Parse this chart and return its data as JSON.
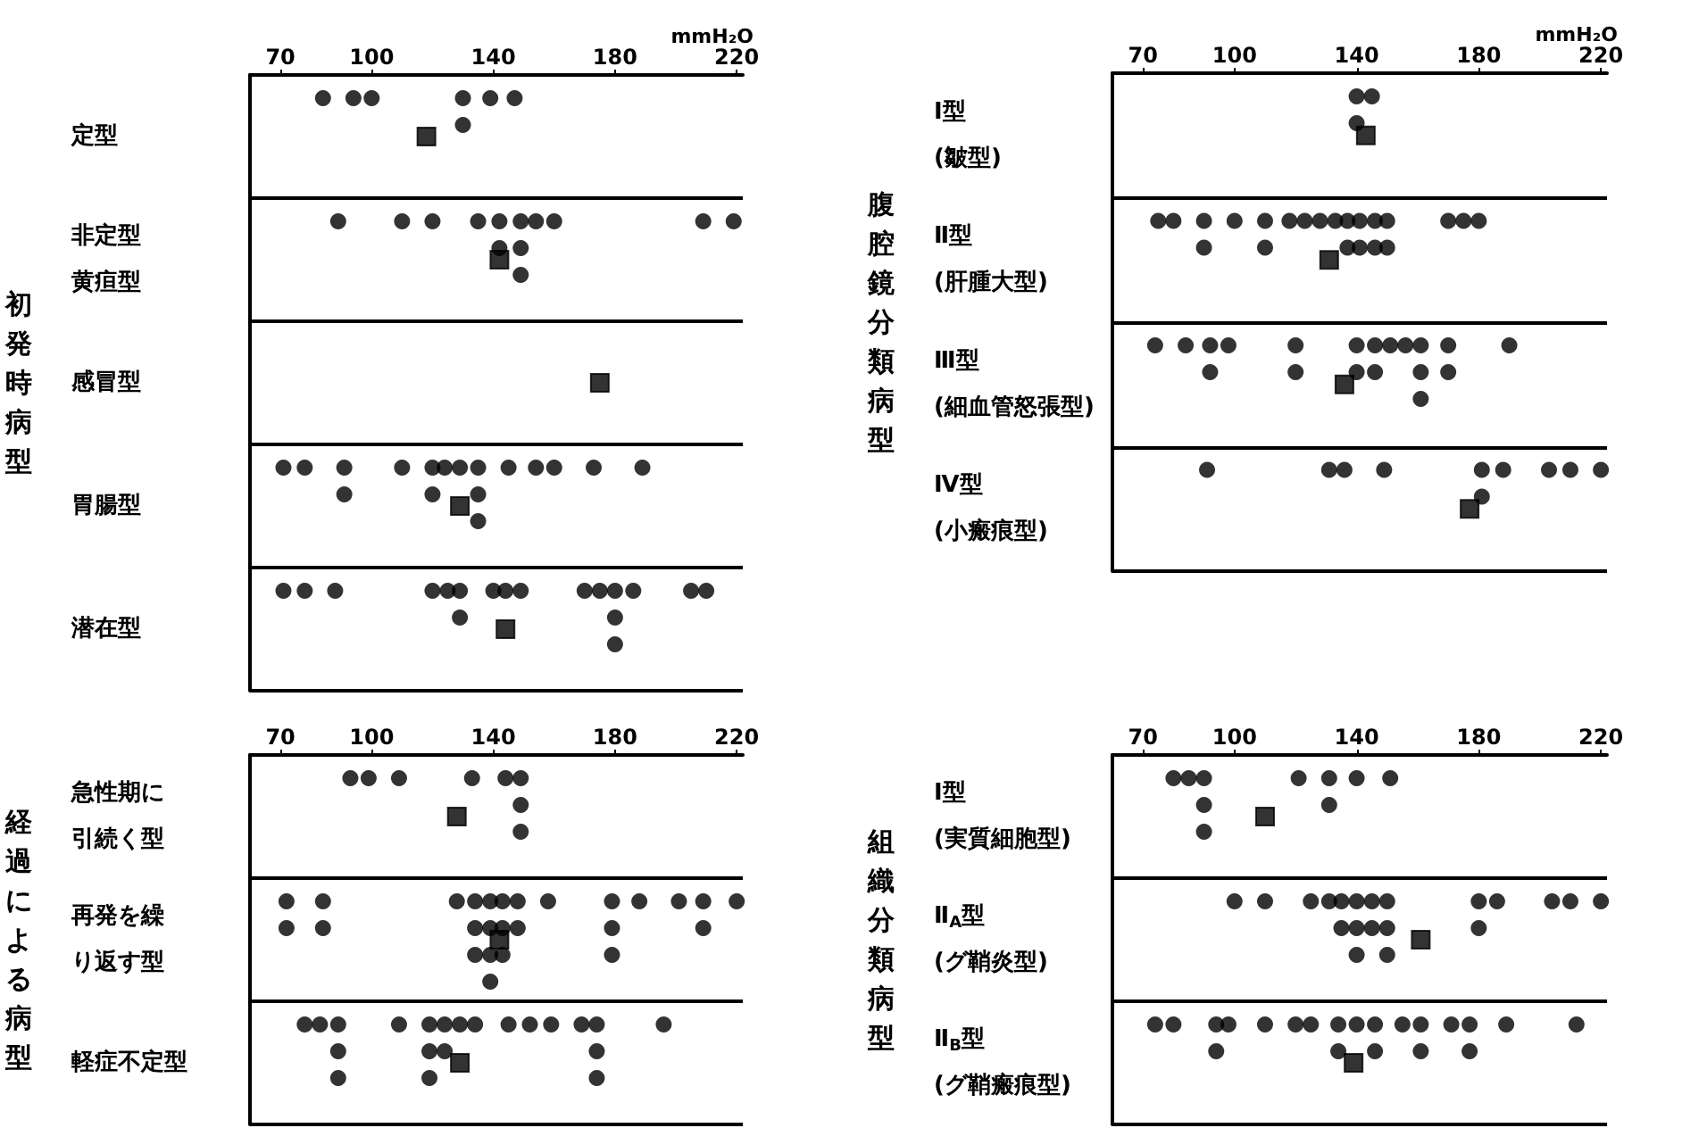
{
  "chart_data": [
    {
      "type": "scatter",
      "orientation": "horizontal",
      "ylabel": "初発時病型",
      "xlabel": "mmH₂O",
      "xlim": [
        60,
        222
      ],
      "xticks": [
        70,
        100,
        140,
        180,
        220
      ],
      "grid": "y",
      "categories": [
        "定型",
        "非定型黄疸型",
        "感冒型",
        "胃腸型",
        "潜在型"
      ],
      "series": [
        {
          "marker": "circle",
          "color": "#000000",
          "values": [
            84,
            94,
            100,
            130,
            139,
            147,
            130,
            89,
            110,
            120,
            135,
            142,
            149,
            154,
            160,
            209,
            219,
            142,
            149,
            149,
            71,
            78,
            91,
            110,
            120,
            124,
            129,
            135,
            145,
            154,
            160,
            173,
            189,
            91,
            120,
            135,
            135,
            71,
            78,
            88,
            120,
            125,
            129,
            140,
            144,
            149,
            170,
            175,
            180,
            186,
            205,
            210,
            129,
            180,
            180
          ],
          "x": [
            "定型",
            "定型",
            "定型",
            "定型",
            "定型",
            "定型",
            "定型",
            "非定型黄疸型",
            "非定型黄疸型",
            "非定型黄疸型",
            "非定型黄疸型",
            "非定型黄疸型",
            "非定型黄疸型",
            "非定型黄疸型",
            "非定型黄疸型",
            "非定型黄疸型",
            "非定型黄疸型",
            "非定型黄疸型",
            "非定型黄疸型",
            "非定型黄疸型",
            "胃腸型",
            "胃腸型",
            "胃腸型",
            "胃腸型",
            "胃腸型",
            "胃腸型",
            "胃腸型",
            "胃腸型",
            "胃腸型",
            "胃腸型",
            "胃腸型",
            "胃腸型",
            "胃腸型",
            "胃腸型",
            "胃腸型",
            "胃腸型",
            "胃腸型",
            "潜在型",
            "潜在型",
            "潜在型",
            "潜在型",
            "潜在型",
            "潜在型",
            "潜在型",
            "潜在型",
            "潜在型",
            "潜在型",
            "潜在型",
            "潜在型",
            "潜在型",
            "潜在型",
            "潜在型",
            "潜在型",
            "潜在型",
            "潜在型"
          ]
        },
        {
          "marker": "square",
          "color": "#000000",
          "values": [
            118,
            142,
            175,
            129,
            144
          ],
          "x": [
            "定型",
            "非定型黄疸型",
            "感冒型",
            "胃腸型",
            "潜在型"
          ]
        }
      ]
    },
    {
      "type": "scatter",
      "orientation": "horizontal",
      "ylabel": "腹腔鏡分類病型",
      "xlabel": "mmH₂O",
      "xlim": [
        60,
        222
      ],
      "xticks": [
        70,
        100,
        140,
        180,
        220
      ],
      "grid": "y",
      "categories": [
        "Ⅰ型(皺型)",
        "Ⅱ型(肝腫大型)",
        "Ⅲ型(細血管怒張型)",
        "Ⅳ型(小瘢痕型)"
      ],
      "series": [
        {
          "marker": "circle",
          "color": "#000000",
          "values": [
            140,
            145,
            140,
            75,
            80,
            90,
            100,
            110,
            118,
            123,
            128,
            133,
            137,
            141,
            146,
            150,
            170,
            175,
            180,
            90,
            110,
            141,
            150,
            137,
            146,
            74,
            84,
            92,
            98,
            120,
            140,
            146,
            151,
            156,
            161,
            170,
            190,
            92,
            120,
            140,
            146,
            161,
            170,
            161,
            91,
            131,
            136,
            149,
            181,
            188,
            203,
            210,
            220,
            181
          ],
          "x": [
            "Ⅰ型(皺型)",
            "Ⅰ型(皺型)",
            "Ⅰ型(皺型)",
            "Ⅱ型(肝腫大型)",
            "Ⅱ型(肝腫大型)",
            "Ⅱ型(肝腫大型)",
            "Ⅱ型(肝腫大型)",
            "Ⅱ型(肝腫大型)",
            "Ⅱ型(肝腫大型)",
            "Ⅱ型(肝腫大型)",
            "Ⅱ型(肝腫大型)",
            "Ⅱ型(肝腫大型)",
            "Ⅱ型(肝腫大型)",
            "Ⅱ型(肝腫大型)",
            "Ⅱ型(肝腫大型)",
            "Ⅱ型(肝腫大型)",
            "Ⅱ型(肝腫大型)",
            "Ⅱ型(肝腫大型)",
            "Ⅱ型(肝腫大型)",
            "Ⅱ型(肝腫大型)",
            "Ⅱ型(肝腫大型)",
            "Ⅱ型(肝腫大型)",
            "Ⅱ型(肝腫大型)",
            "Ⅱ型(肝腫大型)",
            "Ⅱ型(肝腫大型)",
            "Ⅲ型(細血管怒張型)",
            "Ⅲ型(細血管怒張型)",
            "Ⅲ型(細血管怒張型)",
            "Ⅲ型(細血管怒張型)",
            "Ⅲ型(細血管怒張型)",
            "Ⅲ型(細血管怒張型)",
            "Ⅲ型(細血管怒張型)",
            "Ⅲ型(細血管怒張型)",
            "Ⅲ型(細血管怒張型)",
            "Ⅲ型(細血管怒張型)",
            "Ⅲ型(細血管怒張型)",
            "Ⅲ型(細血管怒張型)",
            "Ⅲ型(細血管怒張型)",
            "Ⅲ型(細血管怒張型)",
            "Ⅲ型(細血管怒張型)",
            "Ⅲ型(細血管怒張型)",
            "Ⅲ型(細血管怒張型)",
            "Ⅲ型(細血管怒張型)",
            "Ⅲ型(細血管怒張型)",
            "Ⅳ型(小瘢痕型)",
            "Ⅳ型(小瘢痕型)",
            "Ⅳ型(小瘢痕型)",
            "Ⅳ型(小瘢痕型)",
            "Ⅳ型(小瘢痕型)",
            "Ⅳ型(小瘢痕型)",
            "Ⅳ型(小瘢痕型)",
            "Ⅳ型(小瘢痕型)",
            "Ⅳ型(小瘢痕型)",
            "Ⅳ型(小瘢痕型)"
          ]
        },
        {
          "marker": "square",
          "color": "#000000",
          "values": [
            143,
            131,
            136,
            177
          ],
          "x": [
            "Ⅰ型(皺型)",
            "Ⅱ型(肝腫大型)",
            "Ⅲ型(細血管怒張型)",
            "Ⅳ型(小瘢痕型)"
          ]
        }
      ]
    },
    {
      "type": "scatter",
      "orientation": "horizontal",
      "ylabel": "経過による病型",
      "xlim": [
        60,
        222
      ],
      "xticks": [
        70,
        100,
        140,
        180,
        220
      ],
      "grid": "y",
      "categories": [
        "急性期に引続く型",
        "再発を繰り返す型",
        "軽症不定型"
      ],
      "series": [
        {
          "marker": "circle",
          "color": "#000000",
          "values": [
            93,
            99,
            109,
            133,
            144,
            149,
            149,
            149,
            72,
            84,
            128,
            134,
            139,
            143,
            148,
            158,
            179,
            188,
            201,
            209,
            220,
            72,
            84,
            134,
            139,
            143,
            148,
            179,
            209,
            134,
            139,
            143,
            179,
            139,
            78,
            83,
            89,
            109,
            119,
            124,
            129,
            134,
            145,
            152,
            159,
            169,
            174,
            196,
            89,
            119,
            124,
            174,
            89,
            119,
            174
          ],
          "x": [
            "急性期に引続く型",
            "急性期に引続く型",
            "急性期に引続く型",
            "急性期に引続く型",
            "急性期に引続く型",
            "急性期に引続く型",
            "急性期に引続く型",
            "急性期に引続く型",
            "再発を繰り返す型",
            "再発を繰り返す型",
            "再発を繰り返す型",
            "再発を繰り返す型",
            "再発を繰り返す型",
            "再発を繰り返す型",
            "再発を繰り返す型",
            "再発を繰り返す型",
            "再発を繰り返す型",
            "再発を繰り返す型",
            "再発を繰り返す型",
            "再発を繰り返す型",
            "再発を繰り返す型",
            "再発を繰り返す型",
            "再発を繰り返す型",
            "再発を繰り返す型",
            "再発を繰り返す型",
            "再発を繰り返す型",
            "再発を繰り返す型",
            "再発を繰り返す型",
            "再発を繰り返す型",
            "再発を繰り返す型",
            "再発を繰り返す型",
            "再発を繰り返す型",
            "再発を繰り返す型",
            "再発を繰り返す型",
            "軽症不定型",
            "軽症不定型",
            "軽症不定型",
            "軽症不定型",
            "軽症不定型",
            "軽症不定型",
            "軽症不定型",
            "軽症不定型",
            "軽症不定型",
            "軽症不定型",
            "軽症不定型",
            "軽症不定型",
            "軽症不定型",
            "軽症不定型",
            "軽症不定型",
            "軽症不定型",
            "軽症不定型",
            "軽症不定型",
            "軽症不定型",
            "軽症不定型",
            "軽症不定型"
          ]
        },
        {
          "marker": "square",
          "color": "#000000",
          "values": [
            128,
            142,
            129
          ],
          "x": [
            "急性期に引続く型",
            "再発を繰り返す型",
            "軽症不定型"
          ]
        }
      ]
    },
    {
      "type": "scatter",
      "orientation": "horizontal",
      "ylabel": "組織分類病型",
      "xlim": [
        60,
        222
      ],
      "xticks": [
        70,
        100,
        140,
        180,
        220
      ],
      "grid": "y",
      "categories": [
        "Ⅰ型(実質細胞型)",
        "Ⅱ$_{A}$型(グ鞘炎型)",
        "Ⅱ$_{B}$型(グ鞘瘢痕型)"
      ],
      "series": [
        {
          "marker": "circle",
          "color": "#000000",
          "values": [
            80,
            85,
            90,
            121,
            131,
            140,
            151,
            90,
            131,
            90,
            100,
            110,
            125,
            131,
            135,
            140,
            145,
            150,
            180,
            186,
            204,
            210,
            220,
            135,
            140,
            145,
            150,
            180,
            140,
            150,
            74,
            80,
            94,
            98,
            110,
            120,
            125,
            134,
            140,
            146,
            155,
            161,
            171,
            177,
            189,
            212,
            94,
            134,
            146,
            161,
            177
          ],
          "x": [
            "Ⅰ型(実質細胞型)",
            "Ⅰ型(実質細胞型)",
            "Ⅰ型(実質細胞型)",
            "Ⅰ型(実質細胞型)",
            "Ⅰ型(実質細胞型)",
            "Ⅰ型(実質細胞型)",
            "Ⅰ型(実質細胞型)",
            "Ⅰ型(実質細胞型)",
            "Ⅰ型(実質細胞型)",
            "Ⅰ型(実質細胞型)",
            "Ⅱ$_{A}$型(グ鞘炎型)",
            "Ⅱ$_{A}$型(グ鞘炎型)",
            "Ⅱ$_{A}$型(グ鞘炎型)",
            "Ⅱ$_{A}$型(グ鞘炎型)",
            "Ⅱ$_{A}$型(グ鞘炎型)",
            "Ⅱ$_{A}$型(グ鞘炎型)",
            "Ⅱ$_{A}$型(グ鞘炎型)",
            "Ⅱ$_{A}$型(グ鞘炎型)",
            "Ⅱ$_{A}$型(グ鞘炎型)",
            "Ⅱ$_{A}$型(グ鞘炎型)",
            "Ⅱ$_{A}$型(グ鞘炎型)",
            "Ⅱ$_{A}$型(グ鞘炎型)",
            "Ⅱ$_{A}$型(グ鞘炎型)",
            "Ⅱ$_{A}$型(グ鞘炎型)",
            "Ⅱ$_{A}$型(グ鞘炎型)",
            "Ⅱ$_{A}$型(グ鞘炎型)",
            "Ⅱ$_{A}$型(グ鞘炎型)",
            "Ⅱ$_{A}$型(グ鞘炎型)",
            "Ⅱ$_{A}$型(グ鞘炎型)",
            "Ⅱ$_{A}$型(グ鞘炎型)",
            "Ⅱ$_{B}$型(グ鞘瘢痕型)",
            "Ⅱ$_{B}$型(グ鞘瘢痕型)",
            "Ⅱ$_{B}$型(グ鞘瘢痕型)",
            "Ⅱ$_{B}$型(グ鞘瘢痕型)",
            "Ⅱ$_{B}$型(グ鞘瘢痕型)",
            "Ⅱ$_{B}$型(グ鞘瘢痕型)",
            "Ⅱ$_{B}$型(グ鞘瘢痕型)",
            "Ⅱ$_{B}$型(グ鞘瘢痕型)",
            "Ⅱ$_{B}$型(グ鞘瘢痕型)",
            "Ⅱ$_{B}$型(グ鞘瘢痕型)",
            "Ⅱ$_{B}$型(グ鞘瘢痕型)",
            "Ⅱ$_{B}$型(グ鞘瘢痕型)",
            "Ⅱ$_{B}$型(グ鞘瘢痕型)",
            "Ⅱ$_{B}$型(グ鞘瘢痕型)",
            "Ⅱ$_{B}$型(グ鞘瘢痕型)",
            "Ⅱ$_{B}$型(グ鞘瘢痕型)",
            "Ⅱ$_{B}$型(グ鞘瘢痕型)",
            "Ⅱ$_{B}$型(グ鞘瘢痕型)",
            "Ⅱ$_{B}$型(グ鞘瘢痕型)",
            "Ⅱ$_{B}$型(グ鞘瘢痕型)",
            "Ⅱ$_{B}$型(グ鞘瘢痕型)"
          ]
        },
        {
          "marker": "square",
          "color": "#000000",
          "values": [
            110,
            161,
            139
          ],
          "x": [
            "Ⅰ型(実質細胞型)",
            "Ⅱ$_{A}$型(グ鞘炎型)",
            "Ⅱ$_{B}$型(グ鞘瘢痕型)"
          ]
        }
      ]
    }
  ]
}
